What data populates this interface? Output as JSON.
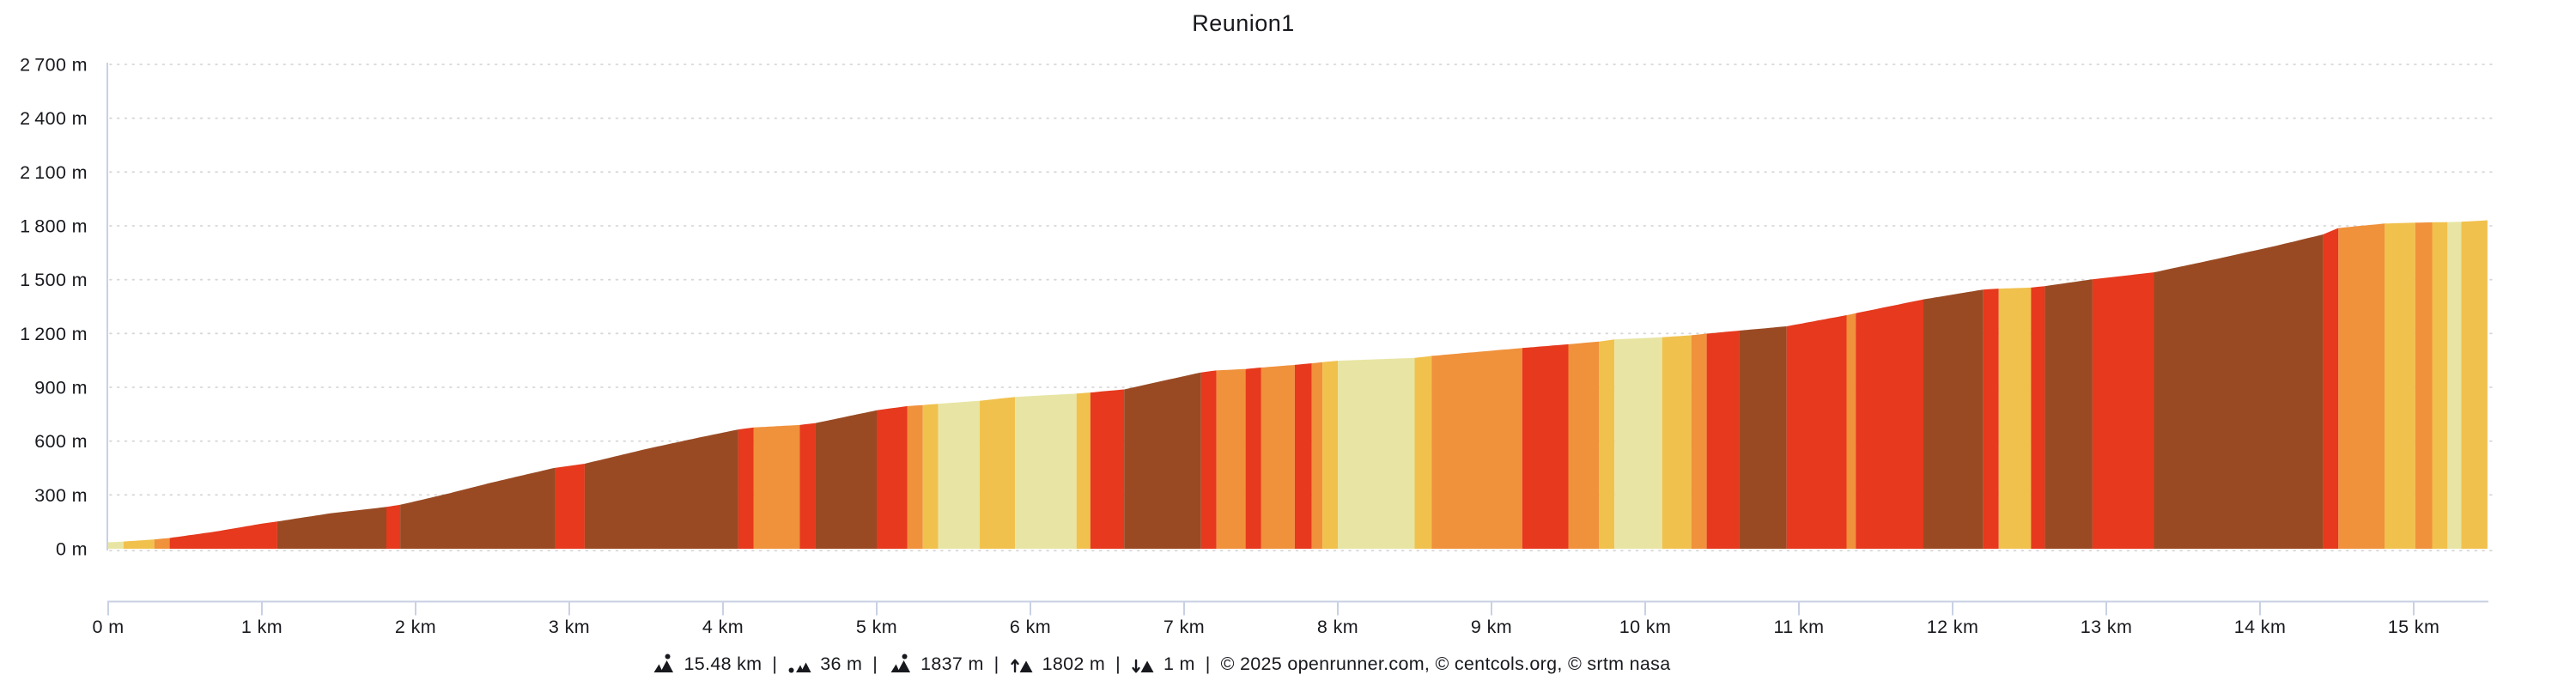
{
  "title": "Reunion1",
  "footer": {
    "separator": "|",
    "stats": [
      {
        "icon": "distance-icon",
        "value": "15.48 km"
      },
      {
        "icon": "min-altitude-icon",
        "value": "36 m"
      },
      {
        "icon": "max-altitude-icon",
        "value": "1837 m"
      },
      {
        "icon": "total-ascent-icon",
        "value": "1802 m"
      },
      {
        "icon": "total-descent-icon",
        "value": "1 m"
      }
    ],
    "copyright": "© 2025 openrunner.com, © centcols.org, © srtm nasa"
  },
  "chart_data": {
    "type": "area",
    "title": "Reunion1",
    "x_unit": "km",
    "y_unit": "m",
    "xlim": [
      0,
      15.54
    ],
    "ylim": [
      0,
      2700
    ],
    "grid": "dotted-horizontal",
    "x_ticks": [
      {
        "value": 0,
        "label": "0 m"
      },
      {
        "value": 1,
        "label": "1 km"
      },
      {
        "value": 2,
        "label": "2 km"
      },
      {
        "value": 3,
        "label": "3 km"
      },
      {
        "value": 4,
        "label": "4 km"
      },
      {
        "value": 5,
        "label": "5 km"
      },
      {
        "value": 6,
        "label": "6 km"
      },
      {
        "value": 7,
        "label": "7 km"
      },
      {
        "value": 8,
        "label": "8 km"
      },
      {
        "value": 9,
        "label": "9 km"
      },
      {
        "value": 10,
        "label": "10 km"
      },
      {
        "value": 11,
        "label": "11 km"
      },
      {
        "value": 12,
        "label": "12 km"
      },
      {
        "value": 13,
        "label": "13 km"
      },
      {
        "value": 14,
        "label": "14 km"
      },
      {
        "value": 15,
        "label": "15 km"
      }
    ],
    "y_ticks": [
      {
        "value": 0,
        "label": "0 m"
      },
      {
        "value": 300,
        "label": "300 m"
      },
      {
        "value": 600,
        "label": "600 m"
      },
      {
        "value": 900,
        "label": "900 m"
      },
      {
        "value": 1200,
        "label": "1 200 m"
      },
      {
        "value": 1500,
        "label": "1 500 m"
      },
      {
        "value": 1800,
        "label": "1 800 m"
      },
      {
        "value": 2100,
        "label": "2 100 m"
      },
      {
        "value": 2400,
        "label": "2 400 m"
      },
      {
        "value": 2700,
        "label": "2 700 m"
      }
    ],
    "palette": {
      "pale": "#E8E5A4",
      "gold": "#F1C14D",
      "orange": "#F0913C",
      "red": "#E6391D",
      "brown": "#9A4A23"
    },
    "axis_color": "#C8D1E3",
    "grid_color": "#D8D8D8",
    "profile": [
      [
        0,
        36
      ],
      [
        0.1,
        40
      ],
      [
        0.3,
        52
      ],
      [
        0.4,
        60
      ],
      [
        0.7,
        96
      ],
      [
        1.0,
        140
      ],
      [
        1.1,
        152
      ],
      [
        1.45,
        198
      ],
      [
        1.8,
        232
      ],
      [
        1.9,
        245
      ],
      [
        2.2,
        305
      ],
      [
        2.5,
        370
      ],
      [
        2.9,
        450
      ],
      [
        3.1,
        474
      ],
      [
        3.5,
        556
      ],
      [
        3.8,
        612
      ],
      [
        4.1,
        665
      ],
      [
        4.2,
        676
      ],
      [
        4.5,
        690
      ],
      [
        4.6,
        700
      ],
      [
        5.0,
        772
      ],
      [
        5.2,
        795
      ],
      [
        5.3,
        801
      ],
      [
        5.4,
        808
      ],
      [
        5.67,
        825
      ],
      [
        5.9,
        846
      ],
      [
        6.3,
        865
      ],
      [
        6.39,
        871
      ],
      [
        6.61,
        888
      ],
      [
        6.85,
        934
      ],
      [
        7.11,
        983
      ],
      [
        7.21,
        994
      ],
      [
        7.4,
        1002
      ],
      [
        7.5,
        1010
      ],
      [
        7.72,
        1025
      ],
      [
        7.83,
        1034
      ],
      [
        7.9,
        1040
      ],
      [
        8.0,
        1048
      ],
      [
        8.5,
        1064
      ],
      [
        8.61,
        1075
      ],
      [
        9.2,
        1119
      ],
      [
        9.5,
        1140
      ],
      [
        9.7,
        1155
      ],
      [
        9.8,
        1167
      ],
      [
        10.11,
        1179
      ],
      [
        10.3,
        1190
      ],
      [
        10.4,
        1199
      ],
      [
        10.61,
        1216
      ],
      [
        10.92,
        1240
      ],
      [
        11.31,
        1302
      ],
      [
        11.37,
        1313
      ],
      [
        11.81,
        1390
      ],
      [
        12.2,
        1445
      ],
      [
        12.3,
        1450
      ],
      [
        12.51,
        1456
      ],
      [
        12.6,
        1464
      ],
      [
        12.91,
        1502
      ],
      [
        13.31,
        1541
      ],
      [
        13.7,
        1612
      ],
      [
        14.1,
        1688
      ],
      [
        14.41,
        1752
      ],
      [
        14.51,
        1788
      ],
      [
        14.81,
        1813
      ],
      [
        15.01,
        1818
      ],
      [
        15.22,
        1821
      ],
      [
        15.31,
        1823
      ],
      [
        15.48,
        1831
      ]
    ],
    "slope_segments": [
      {
        "from": 0,
        "to": 0.1,
        "color": "pale"
      },
      {
        "from": 0.1,
        "to": 0.3,
        "color": "gold"
      },
      {
        "from": 0.3,
        "to": 0.4,
        "color": "orange"
      },
      {
        "from": 0.4,
        "to": 1.1,
        "color": "red"
      },
      {
        "from": 1.1,
        "to": 1.81,
        "color": "brown"
      },
      {
        "from": 1.81,
        "to": 1.9,
        "color": "red"
      },
      {
        "from": 1.9,
        "to": 2.91,
        "color": "brown"
      },
      {
        "from": 2.91,
        "to": 3.1,
        "color": "red"
      },
      {
        "from": 3.1,
        "to": 4.1,
        "color": "brown"
      },
      {
        "from": 4.1,
        "to": 4.2,
        "color": "red"
      },
      {
        "from": 4.2,
        "to": 4.5,
        "color": "orange"
      },
      {
        "from": 4.5,
        "to": 4.6,
        "color": "red"
      },
      {
        "from": 4.6,
        "to": 5.0,
        "color": "brown"
      },
      {
        "from": 5.0,
        "to": 5.2,
        "color": "red"
      },
      {
        "from": 5.2,
        "to": 5.3,
        "color": "orange"
      },
      {
        "from": 5.3,
        "to": 5.4,
        "color": "gold"
      },
      {
        "from": 5.4,
        "to": 5.67,
        "color": "pale"
      },
      {
        "from": 5.67,
        "to": 5.9,
        "color": "gold"
      },
      {
        "from": 5.9,
        "to": 6.3,
        "color": "pale"
      },
      {
        "from": 6.3,
        "to": 6.39,
        "color": "gold"
      },
      {
        "from": 6.39,
        "to": 6.61,
        "color": "red"
      },
      {
        "from": 6.61,
        "to": 7.11,
        "color": "brown"
      },
      {
        "from": 7.11,
        "to": 7.21,
        "color": "red"
      },
      {
        "from": 7.21,
        "to": 7.4,
        "color": "orange"
      },
      {
        "from": 7.4,
        "to": 7.5,
        "color": "red"
      },
      {
        "from": 7.5,
        "to": 7.72,
        "color": "orange"
      },
      {
        "from": 7.72,
        "to": 7.83,
        "color": "red"
      },
      {
        "from": 7.83,
        "to": 7.9,
        "color": "orange"
      },
      {
        "from": 7.9,
        "to": 8.0,
        "color": "gold"
      },
      {
        "from": 8.0,
        "to": 8.5,
        "color": "pale"
      },
      {
        "from": 8.5,
        "to": 8.61,
        "color": "gold"
      },
      {
        "from": 8.61,
        "to": 9.2,
        "color": "orange"
      },
      {
        "from": 9.2,
        "to": 9.5,
        "color": "red"
      },
      {
        "from": 9.5,
        "to": 9.7,
        "color": "orange"
      },
      {
        "from": 9.7,
        "to": 9.8,
        "color": "gold"
      },
      {
        "from": 9.8,
        "to": 10.11,
        "color": "pale"
      },
      {
        "from": 10.11,
        "to": 10.3,
        "color": "gold"
      },
      {
        "from": 10.3,
        "to": 10.4,
        "color": "orange"
      },
      {
        "from": 10.4,
        "to": 10.61,
        "color": "red"
      },
      {
        "from": 10.61,
        "to": 10.92,
        "color": "brown"
      },
      {
        "from": 10.92,
        "to": 11.31,
        "color": "red"
      },
      {
        "from": 11.31,
        "to": 11.37,
        "color": "orange"
      },
      {
        "from": 11.37,
        "to": 11.81,
        "color": "red"
      },
      {
        "from": 11.81,
        "to": 12.2,
        "color": "brown"
      },
      {
        "from": 12.2,
        "to": 12.3,
        "color": "red"
      },
      {
        "from": 12.3,
        "to": 12.51,
        "color": "gold"
      },
      {
        "from": 12.51,
        "to": 12.6,
        "color": "red"
      },
      {
        "from": 12.6,
        "to": 12.91,
        "color": "brown"
      },
      {
        "from": 12.91,
        "to": 13.31,
        "color": "red"
      },
      {
        "from": 13.31,
        "to": 14.41,
        "color": "brown"
      },
      {
        "from": 14.41,
        "to": 14.51,
        "color": "red"
      },
      {
        "from": 14.51,
        "to": 14.81,
        "color": "orange"
      },
      {
        "from": 14.81,
        "to": 15.01,
        "color": "gold"
      },
      {
        "from": 15.01,
        "to": 15.12,
        "color": "orange"
      },
      {
        "from": 15.12,
        "to": 15.22,
        "color": "gold"
      },
      {
        "from": 15.22,
        "to": 15.31,
        "color": "pale"
      },
      {
        "from": 15.31,
        "to": 15.48,
        "color": "gold"
      }
    ]
  }
}
